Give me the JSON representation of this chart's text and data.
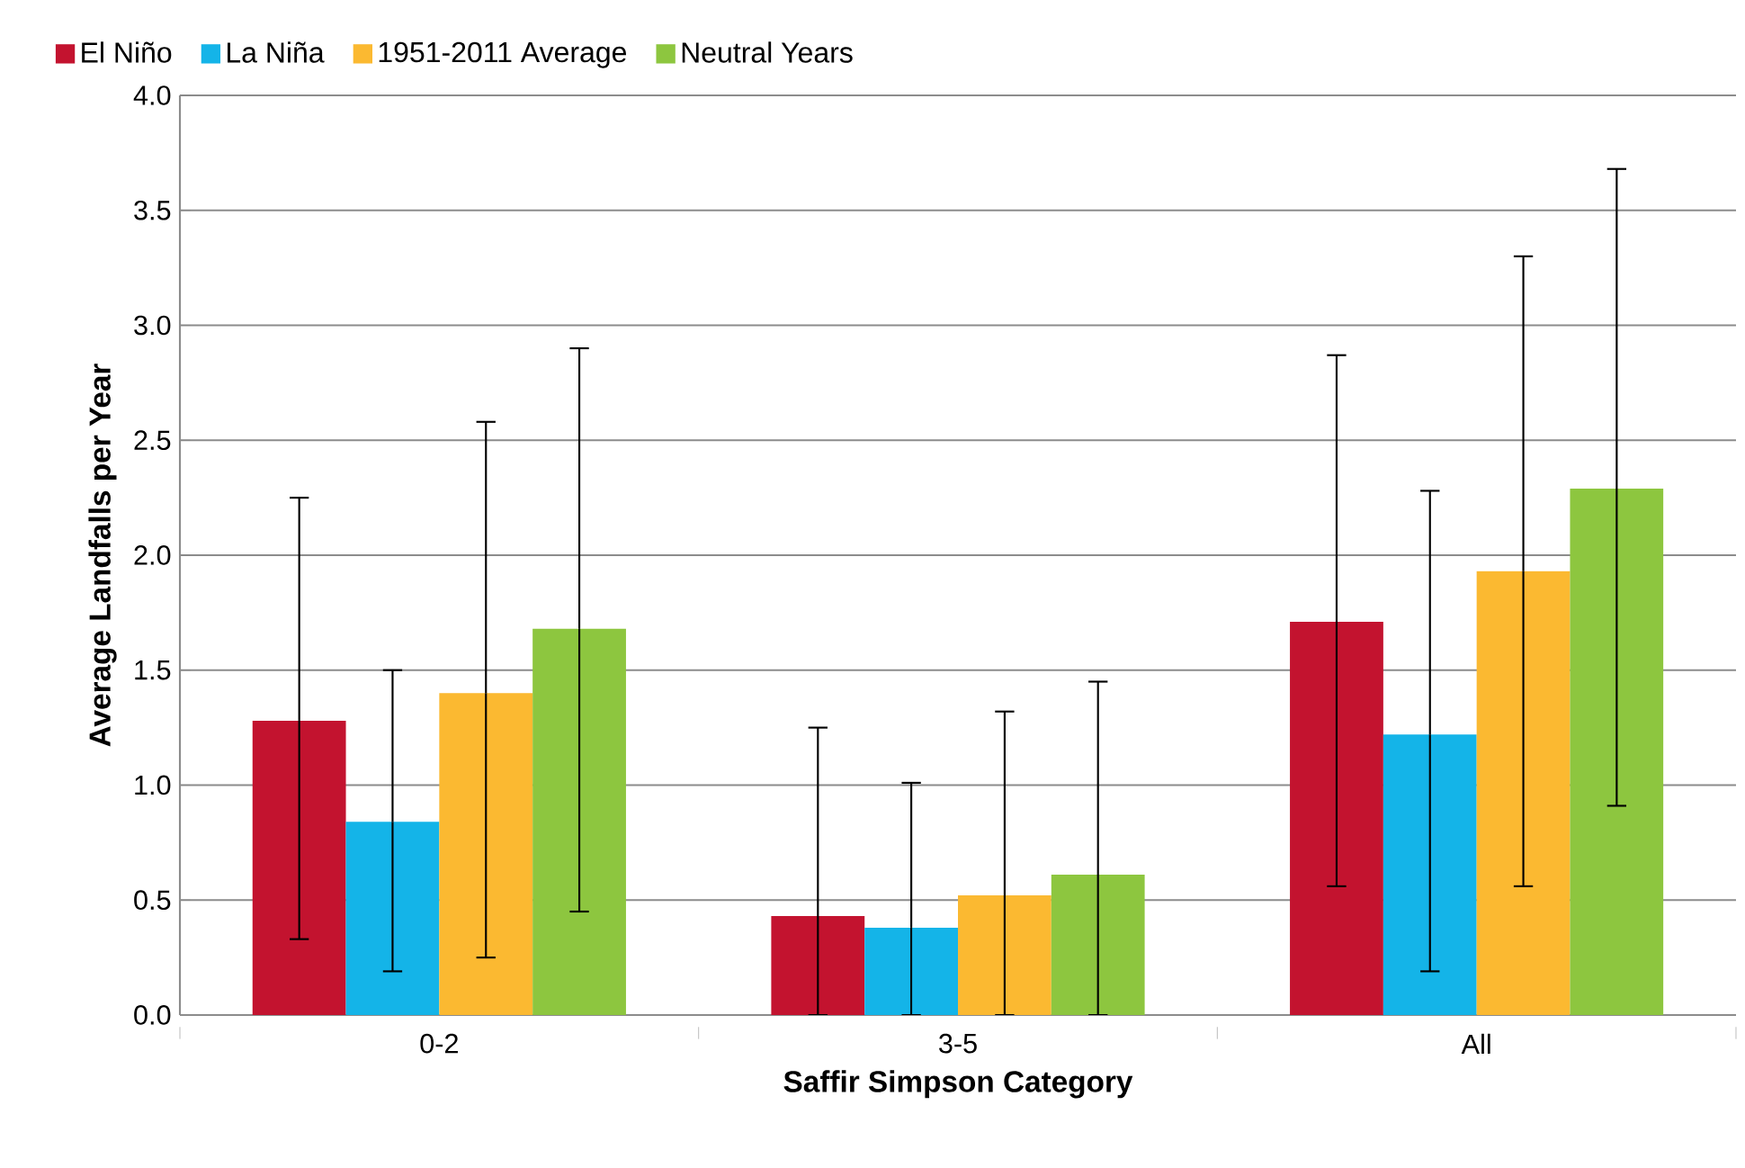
{
  "chart_data": {
    "type": "bar",
    "xlabel": "Saffir Simpson Category",
    "ylabel": "Average Landfalls per Year",
    "categories": [
      "0-2",
      "3-5",
      "All"
    ],
    "series": [
      {
        "name": "El Niño",
        "color": "#c3132f",
        "values": [
          1.28,
          0.43,
          1.71
        ],
        "errors": [
          [
            0.33,
            2.25
          ],
          [
            0,
            1.25
          ],
          [
            0.56,
            2.87
          ]
        ]
      },
      {
        "name": "La Niña",
        "color": "#14b4e8",
        "values": [
          0.84,
          0.38,
          1.22
        ],
        "errors": [
          [
            0.19,
            1.5
          ],
          [
            0,
            1.01
          ],
          [
            0.19,
            2.28
          ]
        ]
      },
      {
        "name": "1951-2011 Average",
        "color": "#fbb931",
        "values": [
          1.4,
          0.52,
          1.93
        ],
        "errors": [
          [
            0.25,
            2.58
          ],
          [
            0,
            1.32
          ],
          [
            0.56,
            3.3
          ]
        ]
      },
      {
        "name": "Neutral Years",
        "color": "#8dc63f",
        "values": [
          1.68,
          0.61,
          2.29
        ],
        "errors": [
          [
            0.45,
            2.9
          ],
          [
            0,
            1.45
          ],
          [
            0.91,
            3.68
          ]
        ]
      }
    ],
    "ylim": [
      0,
      4
    ],
    "yticks": [
      {
        "value": 0,
        "label": "0.0"
      },
      {
        "value": 0.5,
        "label": "0.5"
      },
      {
        "value": 1,
        "label": "1.0"
      },
      {
        "value": 1.5,
        "label": "1.5"
      },
      {
        "value": 2,
        "label": "2.0"
      },
      {
        "value": 2.5,
        "label": "2.5"
      },
      {
        "value": 3,
        "label": "3.0"
      },
      {
        "value": 3.5,
        "label": "3.5"
      },
      {
        "value": 4,
        "label": "4.0"
      }
    ],
    "grid": "y",
    "legend": "top"
  }
}
